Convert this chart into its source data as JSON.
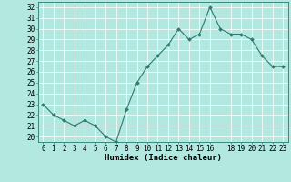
{
  "x": [
    0,
    1,
    2,
    3,
    4,
    5,
    6,
    7,
    8,
    9,
    10,
    11,
    12,
    13,
    14,
    15,
    16,
    17,
    18,
    19,
    20,
    21,
    22,
    23
  ],
  "y": [
    23.0,
    22.0,
    21.5,
    21.0,
    21.5,
    21.0,
    20.0,
    19.5,
    22.5,
    25.0,
    26.5,
    27.5,
    28.5,
    30.0,
    29.0,
    29.5,
    32.0,
    30.0,
    29.5,
    29.5,
    29.0,
    27.5,
    26.5,
    26.5
  ],
  "line_color": "#2d7a6e",
  "marker": "D",
  "marker_size": 2.0,
  "bg_color": "#b2e8e0",
  "grid_color": "#ffffff",
  "xlabel": "Humidex (Indice chaleur)",
  "xlim": [
    -0.5,
    23.5
  ],
  "ylim": [
    19.5,
    32.5
  ],
  "yticks": [
    20,
    21,
    22,
    23,
    24,
    25,
    26,
    27,
    28,
    29,
    30,
    31,
    32
  ],
  "xticks": [
    0,
    1,
    2,
    3,
    4,
    5,
    6,
    7,
    8,
    9,
    10,
    11,
    12,
    13,
    14,
    15,
    16,
    18,
    19,
    20,
    21,
    22,
    23
  ],
  "label_fontsize": 6.5,
  "tick_fontsize": 5.5
}
